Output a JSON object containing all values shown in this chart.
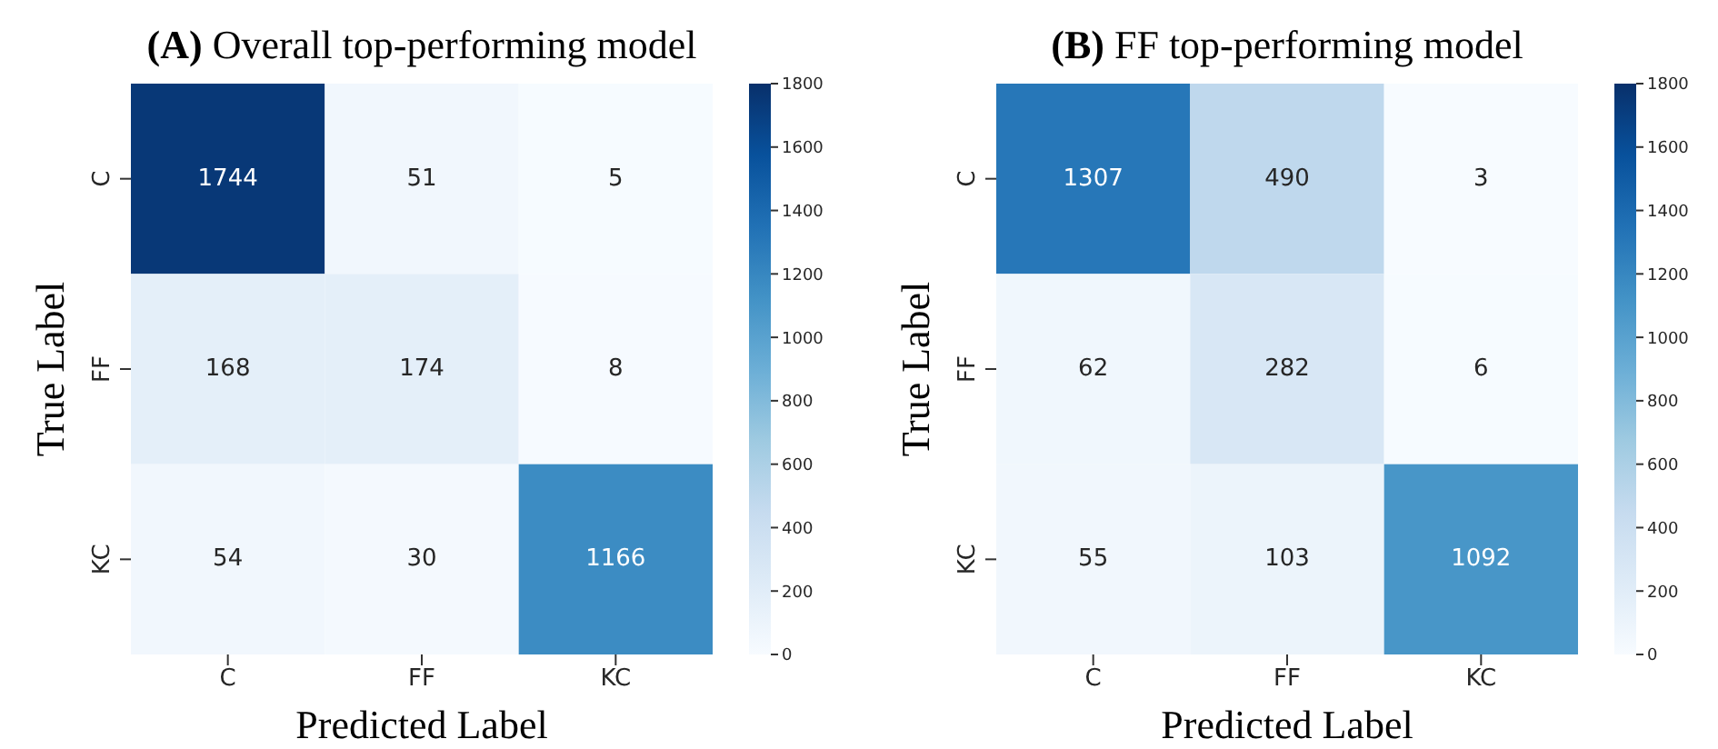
{
  "chart_data": [
    {
      "type": "heatmap",
      "title": "(A) Overall top-performing model",
      "xlabel": "Predicted Label",
      "ylabel": "True Label",
      "categories": [
        "C",
        "FF",
        "KC"
      ],
      "y_categories": [
        "C",
        "FF",
        "KC"
      ],
      "cells": [
        [
          1744,
          51,
          5
        ],
        [
          168,
          174,
          8
        ],
        [
          54,
          30,
          1166
        ]
      ],
      "clim": [
        0,
        1800
      ],
      "cticks": [
        0,
        200,
        400,
        600,
        800,
        1000,
        1200,
        1400,
        1600,
        1800
      ],
      "data_labels": true
    },
    {
      "type": "heatmap",
      "title": "(B) FF top-performing model",
      "xlabel": "Predicted Label",
      "ylabel": "True Label",
      "categories": [
        "C",
        "FF",
        "KC"
      ],
      "y_categories": [
        "C",
        "FF",
        "KC"
      ],
      "cells": [
        [
          1307,
          490,
          3
        ],
        [
          62,
          282,
          6
        ],
        [
          55,
          103,
          1092
        ]
      ],
      "clim": [
        0,
        1800
      ],
      "cticks": [
        0,
        200,
        400,
        600,
        800,
        1000,
        1200,
        1400,
        1600,
        1800
      ],
      "data_labels": true
    }
  ]
}
